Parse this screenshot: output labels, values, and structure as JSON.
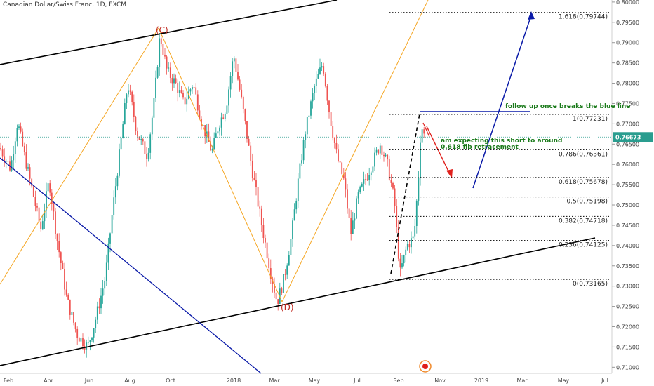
{
  "chart_data": {
    "type": "candlestick",
    "title": "Canadian Dollar/Swiss Franc, 1D, FXCM",
    "x_ticks": [
      "Feb",
      "Apr",
      "Jun",
      "Aug",
      "Oct",
      "2018",
      "Mar",
      "May",
      "Jul",
      "Sep",
      "Nov",
      "2019",
      "Mar",
      "May",
      "Jul"
    ],
    "y_ticks": [
      "0.80000",
      "0.79500",
      "0.79000",
      "0.78500",
      "0.78000",
      "0.77500",
      "0.77000",
      "0.76500",
      "0.76000",
      "0.75500",
      "0.75000",
      "0.74500",
      "0.74000",
      "0.73500",
      "0.73000",
      "0.72500",
      "0.72000",
      "0.71500",
      "0.71000"
    ],
    "ylim": [
      0.7085,
      0.8005
    ],
    "last_price": {
      "label": "0.76673",
      "value": 0.76673,
      "color": "#2a9d8f"
    },
    "colors": {
      "up": "#26a69a",
      "down": "#ef5350",
      "channel": "#000000",
      "blue": "#0a1aa8",
      "orange": "#f5a623",
      "annotation_red": "#e0201c",
      "note_green": "#1a7a1a"
    },
    "fib_levels": [
      {
        "label": "1.618(0.79744)",
        "value": 0.79744
      },
      {
        "label": "1(0.77231)",
        "value": 0.77231
      },
      {
        "label": "0.786(0.76361)",
        "value": 0.76361
      },
      {
        "label": "0.618(0.75678)",
        "value": 0.75678
      },
      {
        "label": "0.5(0.75198)",
        "value": 0.75198
      },
      {
        "label": "0.382(0.74718)",
        "value": 0.74718
      },
      {
        "label": "0.236(0.74125)",
        "value": 0.74125
      },
      {
        "label": "0(0.73165)",
        "value": 0.73165
      }
    ],
    "points": [
      {
        "label": "(C)",
        "value": 0.7925
      },
      {
        "label": "(D)",
        "value": 0.7245
      }
    ],
    "annotations": [
      "follow up once breaks the blue line",
      "am expecting this short to around",
      "0.618 fib retracement"
    ]
  }
}
